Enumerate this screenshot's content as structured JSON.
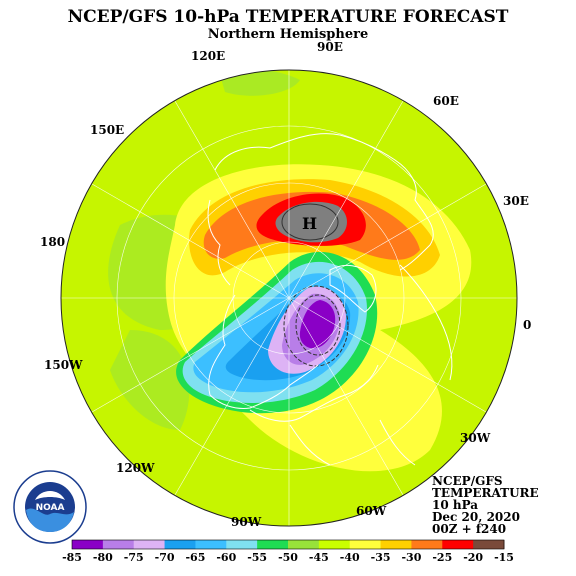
{
  "title": "NCEP/GFS 10-hPa TEMPERATURE FORECAST",
  "subtitle": "Northern Hemisphere",
  "longitude_labels": {
    "e90": "90E",
    "e120": "120E",
    "e60": "60E",
    "e150": "150E",
    "e30": "30E",
    "lon180": "180",
    "lon0": "0",
    "w150": "150W",
    "w30": "30W",
    "w120": "120W",
    "w90": "90W",
    "w60": "60W"
  },
  "high_marker": "H",
  "info": {
    "line1": "NCEP/GFS",
    "line2": "TEMPERATURE",
    "line3": "10 hPa",
    "line4": "Dec 20, 2020",
    "line5": "00Z + f240"
  },
  "logo": {
    "text": "NOAA",
    "ring_text": "NATIONAL OCEANIC AND ATMOSPHERIC ADMINISTRATION · U.S. DEPARTMENT OF COMMERCE"
  },
  "colorbar": {
    "labels": [
      "-85",
      "-80",
      "-75",
      "-70",
      "-65",
      "-60",
      "-55",
      "-50",
      "-45",
      "-40",
      "-35",
      "-30",
      "-25",
      "-20",
      "-15"
    ],
    "colors": [
      "#8a00c6",
      "#b87ee8",
      "#ddb3f5",
      "#1aa0f0",
      "#3cbfff",
      "#7fe0f0",
      "#1fdc53",
      "#98e23a",
      "#caff00",
      "#ffff3c",
      "#ffd000",
      "#ff7a1a",
      "#ff0000",
      "#7a4a3a",
      "#7f7f7f"
    ]
  },
  "colors": {
    "background": "#ffffff",
    "coastline": "#ffffff",
    "field_base": "#c6f500"
  }
}
